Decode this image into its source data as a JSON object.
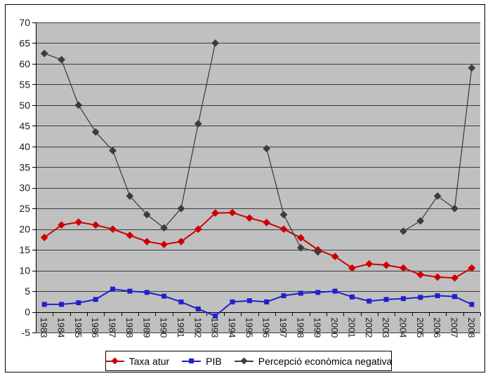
{
  "chart_data": {
    "type": "line",
    "title": "",
    "xlabel": "",
    "ylabel": "",
    "categories": [
      "1983",
      "1984",
      "1985",
      "1986",
      "1987",
      "1988",
      "1989",
      "1990",
      "1991",
      "1992",
      "1993",
      "1994",
      "1995",
      "1996",
      "1997",
      "1998",
      "1999",
      "2000",
      "2001",
      "2002",
      "2003",
      "2004",
      "2005",
      "2006",
      "2007",
      "2008"
    ],
    "series": [
      {
        "name": "Taxa atur",
        "color": "#cc0000",
        "marker": "diamond",
        "values": [
          18,
          21,
          21.7,
          21,
          20,
          18.5,
          17,
          16.3,
          17,
          20,
          23.9,
          24,
          22.7,
          21.6,
          20,
          17.9,
          15,
          13.4,
          10.6,
          11.6,
          11.3,
          10.6,
          9,
          8.4,
          8.2,
          10.6
        ]
      },
      {
        "name": "PIB",
        "color": "#2020cc",
        "marker": "square",
        "values": [
          1.8,
          1.8,
          2.2,
          3,
          5.5,
          5,
          4.7,
          3.8,
          2.4,
          0.7,
          -1,
          2.4,
          2.7,
          2.4,
          3.9,
          4.5,
          4.7,
          5,
          3.6,
          2.6,
          3,
          3.2,
          3.5,
          3.9,
          3.7,
          1.8
        ]
      },
      {
        "name": "Percepció econòmica negativa",
        "color": "#3c3c3c",
        "marker": "diamond",
        "values": [
          62.5,
          61,
          50,
          43.5,
          39,
          28,
          23.5,
          20.3,
          25,
          45.5,
          65,
          null,
          null,
          39.5,
          23.5,
          15.5,
          14.5,
          null,
          null,
          null,
          null,
          19.5,
          22,
          28,
          25,
          59
        ]
      }
    ],
    "y_ticks": [
      70,
      65,
      60,
      55,
      50,
      45,
      40,
      35,
      30,
      25,
      20,
      15,
      10,
      5,
      0,
      -5
    ],
    "ylim": [
      -5,
      70
    ],
    "grid": true,
    "legend_position": "bottom",
    "plot_bg": "#c0c0c0",
    "axis_color": "#000000",
    "grid_color": "#3c3c3c"
  }
}
